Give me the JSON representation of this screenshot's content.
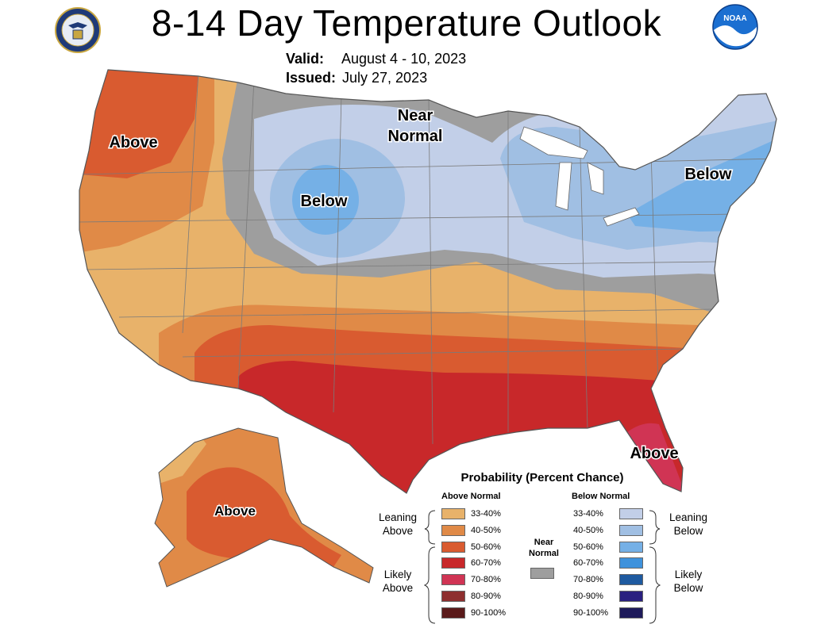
{
  "header": {
    "title": "8-14 Day Temperature Outlook",
    "valid_label": "Valid:",
    "valid_value": "August 4 - 10, 2023",
    "issued_label": "Issued:",
    "issued_value": "July 27, 2023"
  },
  "logos": {
    "left": "department-of-commerce-seal",
    "right_text": "NOAA"
  },
  "map_labels": {
    "pacific_nw": "Above",
    "near_normal_line1": "Near",
    "near_normal_line2": "Normal",
    "rockies": "Below",
    "northeast": "Below",
    "florida": "Above",
    "alaska": "Above"
  },
  "legend": {
    "title": "Probability (Percent Chance)",
    "above_head": "Above Normal",
    "below_head": "Below Normal",
    "near_normal_line1": "Near",
    "near_normal_line2": "Normal",
    "near_normal_color": "#9e9e9e",
    "above": [
      {
        "range": "33-40%",
        "color": "#e8b26a"
      },
      {
        "range": "40-50%",
        "color": "#e08a47"
      },
      {
        "range": "50-60%",
        "color": "#d95b30"
      },
      {
        "range": "60-70%",
        "color": "#c8282a"
      },
      {
        "range": "70-80%",
        "color": "#d03454"
      },
      {
        "range": "80-90%",
        "color": "#8e2f2f"
      },
      {
        "range": "90-100%",
        "color": "#5a1a1a"
      }
    ],
    "below": [
      {
        "range": "33-40%",
        "color": "#c2cfe8"
      },
      {
        "range": "40-50%",
        "color": "#a0bfe3"
      },
      {
        "range": "50-60%",
        "color": "#75b0e6"
      },
      {
        "range": "60-70%",
        "color": "#3e92dc"
      },
      {
        "range": "70-80%",
        "color": "#1e5aa0"
      },
      {
        "range": "80-90%",
        "color": "#2a2080"
      },
      {
        "range": "90-100%",
        "color": "#1e1a5a"
      }
    ],
    "groups": {
      "leaning_above_1": "Leaning",
      "leaning_above_2": "Above",
      "likely_above_1": "Likely",
      "likely_above_2": "Above",
      "leaning_below_1": "Leaning",
      "leaning_below_2": "Below",
      "likely_below_1": "Likely",
      "likely_below_2": "Below"
    }
  },
  "colors": {
    "above_33_40": "#e8b26a",
    "above_40_50": "#e08a47",
    "above_50_60": "#d95b30",
    "above_60_70": "#c8282a",
    "above_70_80": "#d03454",
    "near_normal": "#9e9e9e",
    "below_33_40": "#c2cfe8",
    "below_40_50": "#a0bfe3",
    "below_50_60": "#75b0e6"
  }
}
